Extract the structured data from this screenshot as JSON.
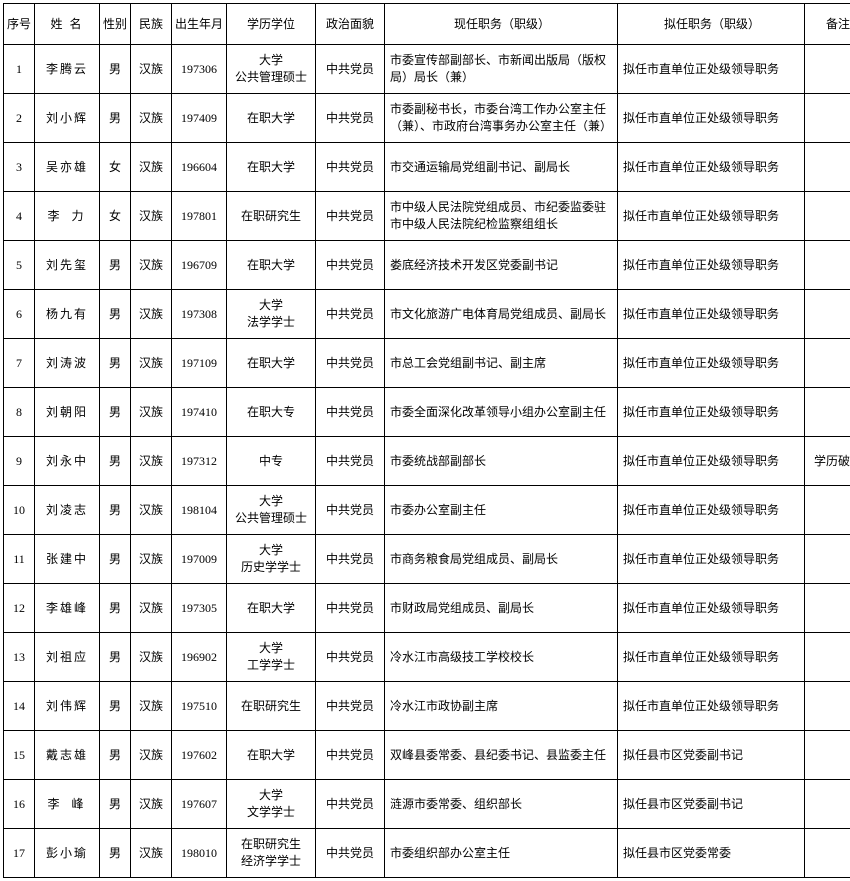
{
  "columns": [
    "序号",
    "姓 名",
    "性别",
    "民族",
    "出生年月",
    "学历学位",
    "政治面貌",
    "现任职务（职级）",
    "拟任职务（职级）",
    "备注"
  ],
  "rows": [
    {
      "seq": "1",
      "name": "李腾云",
      "gender": "男",
      "ethnic": "汉族",
      "birth": "197306",
      "edu": "大学\n公共管理硕士",
      "pol": "中共党员",
      "current": "市委宣传部副部长、市新闻出版局（版权局）局长（兼）",
      "prop": "拟任市直单位正处级领导职务",
      "note": ""
    },
    {
      "seq": "2",
      "name": "刘小辉",
      "gender": "男",
      "ethnic": "汉族",
      "birth": "197409",
      "edu": "在职大学",
      "pol": "中共党员",
      "current": "市委副秘书长，市委台湾工作办公室主任（兼）、市政府台湾事务办公室主任（兼）",
      "prop": "拟任市直单位正处级领导职务",
      "note": ""
    },
    {
      "seq": "3",
      "name": "吴亦雄",
      "gender": "女",
      "ethnic": "汉族",
      "birth": "196604",
      "edu": "在职大学",
      "pol": "中共党员",
      "current": "市交通运输局党组副书记、副局长",
      "prop": "拟任市直单位正处级领导职务",
      "note": ""
    },
    {
      "seq": "4",
      "name": "李力",
      "gender": "女",
      "ethnic": "汉族",
      "birth": "197801",
      "edu": "在职研究生",
      "pol": "中共党员",
      "current": "市中级人民法院党组成员、市纪委监委驻市中级人民法院纪检监察组组长",
      "prop": "拟任市直单位正处级领导职务",
      "note": ""
    },
    {
      "seq": "5",
      "name": "刘先玺",
      "gender": "男",
      "ethnic": "汉族",
      "birth": "196709",
      "edu": "在职大学",
      "pol": "中共党员",
      "current": "娄底经济技术开发区党委副书记",
      "prop": "拟任市直单位正处级领导职务",
      "note": ""
    },
    {
      "seq": "6",
      "name": "杨九有",
      "gender": "男",
      "ethnic": "汉族",
      "birth": "197308",
      "edu": "大学\n法学学士",
      "pol": "中共党员",
      "current": "市文化旅游广电体育局党组成员、副局长",
      "prop": "拟任市直单位正处级领导职务",
      "note": ""
    },
    {
      "seq": "7",
      "name": "刘涛波",
      "gender": "男",
      "ethnic": "汉族",
      "birth": "197109",
      "edu": "在职大学",
      "pol": "中共党员",
      "current": "市总工会党组副书记、副主席",
      "prop": "拟任市直单位正处级领导职务",
      "note": ""
    },
    {
      "seq": "8",
      "name": "刘朝阳",
      "gender": "男",
      "ethnic": "汉族",
      "birth": "197410",
      "edu": "在职大专",
      "pol": "中共党员",
      "current": "市委全面深化改革领导小组办公室副主任",
      "prop": "拟任市直单位正处级领导职务",
      "note": ""
    },
    {
      "seq": "9",
      "name": "刘永中",
      "gender": "男",
      "ethnic": "汉族",
      "birth": "197312",
      "edu": "中专",
      "pol": "中共党员",
      "current": "市委统战部副部长",
      "prop": "拟任市直单位正处级领导职务",
      "note": "学历破格"
    },
    {
      "seq": "10",
      "name": "刘凌志",
      "gender": "男",
      "ethnic": "汉族",
      "birth": "198104",
      "edu": "大学\n公共管理硕士",
      "pol": "中共党员",
      "current": "市委办公室副主任",
      "prop": "拟任市直单位正处级领导职务",
      "note": ""
    },
    {
      "seq": "11",
      "name": "张建中",
      "gender": "男",
      "ethnic": "汉族",
      "birth": "197009",
      "edu": "大学\n历史学学士",
      "pol": "中共党员",
      "current": "市商务粮食局党组成员、副局长",
      "prop": "拟任市直单位正处级领导职务",
      "note": ""
    },
    {
      "seq": "12",
      "name": "李雄峰",
      "gender": "男",
      "ethnic": "汉族",
      "birth": "197305",
      "edu": "在职大学",
      "pol": "中共党员",
      "current": "市财政局党组成员、副局长",
      "prop": "拟任市直单位正处级领导职务",
      "note": ""
    },
    {
      "seq": "13",
      "name": "刘祖应",
      "gender": "男",
      "ethnic": "汉族",
      "birth": "196902",
      "edu": "大学\n工学学士",
      "pol": "中共党员",
      "current": "冷水江市高级技工学校校长",
      "prop": "拟任市直单位正处级领导职务",
      "note": ""
    },
    {
      "seq": "14",
      "name": "刘伟辉",
      "gender": "男",
      "ethnic": "汉族",
      "birth": "197510",
      "edu": "在职研究生",
      "pol": "中共党员",
      "current": "冷水江市政协副主席",
      "prop": "拟任市直单位正处级领导职务",
      "note": ""
    },
    {
      "seq": "15",
      "name": "戴志雄",
      "gender": "男",
      "ethnic": "汉族",
      "birth": "197602",
      "edu": "在职大学",
      "pol": "中共党员",
      "current": "双峰县委常委、县纪委书记、县监委主任",
      "prop": "拟任县市区党委副书记",
      "note": ""
    },
    {
      "seq": "16",
      "name": "李峰",
      "gender": "男",
      "ethnic": "汉族",
      "birth": "197607",
      "edu": "大学\n文学学士",
      "pol": "中共党员",
      "current": "涟源市委常委、组织部长",
      "prop": "拟任县市区党委副书记",
      "note": ""
    },
    {
      "seq": "17",
      "name": "彭小瑜",
      "gender": "男",
      "ethnic": "汉族",
      "birth": "198010",
      "edu": "在职研究生\n经济学学士",
      "pol": "中共党员",
      "current": "市委组织部办公室主任",
      "prop": "拟任县市区党委常委",
      "note": ""
    }
  ]
}
